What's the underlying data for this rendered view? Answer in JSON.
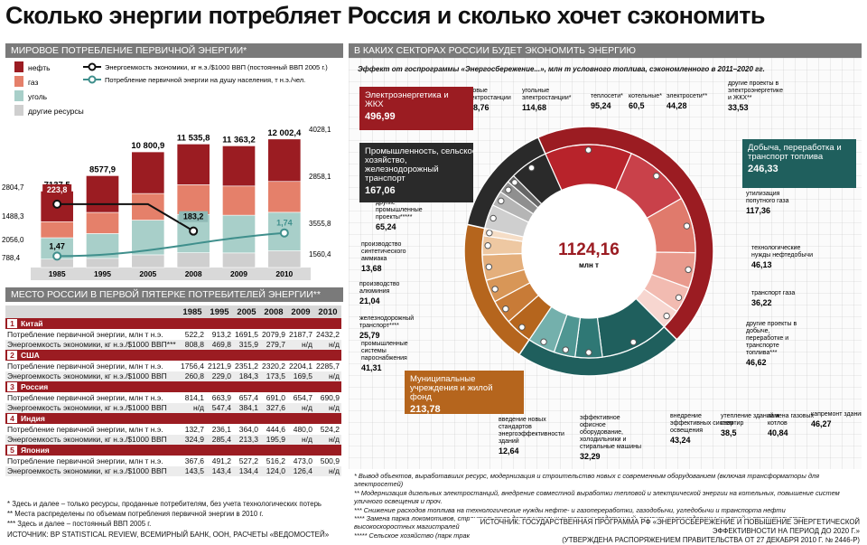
{
  "title": "Сколько энергии потребляет Россия и сколько хочет сэкономить",
  "colors": {
    "oil": "#9b1c22",
    "gas": "#e5806a",
    "coal": "#a8cfc9",
    "other": "#cfcfcf",
    "teal": "#3f8f8c",
    "dark": "#2a2a2a"
  },
  "left_section_title": "Мировое потребление первичной энергии*",
  "table_section_title": "Место России в первой пятерке потребителей энергии**",
  "right_section_title": "В каких секторах России будет экономить энергию",
  "right_subtitle": "Эффект от госпрограммы «Энергосбережение...», млн т условного топлива, сэкономленного в 2011–2020 гг.",
  "chart_data": [
    {
      "type": "bar",
      "title": "Мировое потребление первичной энергии*",
      "categories": [
        "1985",
        "1995",
        "2005",
        "2008",
        "2009",
        "2010"
      ],
      "totals": [
        "7137,5",
        "8577,9",
        "10 800,9",
        "11 535,8",
        "11 363,2",
        "12 002,4"
      ],
      "total_values": [
        7137.5,
        8577.9,
        10800.9,
        11535.8,
        11363.2,
        12002.4
      ],
      "legend": [
        "нефть",
        "газ",
        "уголь",
        "другие ресурсы"
      ],
      "legend_lines": [
        "Энергоемкость экономики, кг н.э./$1000 ВВП (постоянный ВВП 2005 г.)",
        "Потребление первичной энергии на душу населения, т н.э./чел."
      ],
      "left_axis_labels": [
        "2804,7",
        "1488,3",
        "2056,0",
        "788,4"
      ],
      "right_axis_labels": [
        "4028,1",
        "2858,1",
        "3555,8",
        "1560,4"
      ],
      "series": [
        {
          "name": "другие ресурсы",
          "values": [
            788.4,
            null,
            null,
            null,
            null,
            1560.4
          ]
        },
        {
          "name": "уголь",
          "values": [
            2056.0,
            null,
            null,
            null,
            null,
            3555.8
          ]
        },
        {
          "name": "газ",
          "values": [
            1488.3,
            null,
            null,
            null,
            null,
            2858.1
          ]
        },
        {
          "name": "нефть",
          "values": [
            2804.7,
            null,
            null,
            null,
            null,
            4028.1
          ]
        }
      ],
      "line_series": [
        {
          "name": "Энергоемкость экономики, кг н.э./$1000 ВВП (постоянный ВВП 2005 г.)",
          "values": [
            223.8,
            null,
            null,
            183.2,
            null,
            null
          ],
          "labels": [
            "223,8",
            "",
            "",
            "183,2",
            "",
            ""
          ]
        },
        {
          "name": "Потребление первичной энергии на душу населения, т н.э./чел.",
          "values": [
            1.47,
            null,
            null,
            null,
            null,
            1.74
          ],
          "labels": [
            "1,47",
            "",
            "",
            "",
            "",
            "1,74"
          ]
        }
      ]
    },
    {
      "type": "table",
      "title": "Место России в первой пятерке потребителей энергии**",
      "columns": [
        "1985",
        "1995",
        "2005",
        "2008",
        "2009",
        "2010"
      ],
      "countries": [
        {
          "num": "1",
          "name": "Китай",
          "rows": [
            {
              "label": "Потребление первичной энергии, млн т н.э.",
              "values": [
                "522,2",
                "913,2",
                "1691,5",
                "2079,9",
                "2187,7",
                "2432,2"
              ]
            },
            {
              "label": "Энергоемкость экономики, кг н.э./$1000 ВВП***",
              "values": [
                "808,8",
                "469,8",
                "315,9",
                "279,7",
                "н/д",
                "н/д"
              ]
            }
          ]
        },
        {
          "num": "2",
          "name": "США",
          "rows": [
            {
              "label": "Потребление первичной энергии, млн т н.э.",
              "values": [
                "1756,4",
                "2121,9",
                "2351,2",
                "2320,2",
                "2204,1",
                "2285,7"
              ]
            },
            {
              "label": "Энергоемкость экономики, кг н.э./$1000 ВВП",
              "values": [
                "260,8",
                "229,0",
                "184,3",
                "173,5",
                "169,5",
                "н/д"
              ]
            }
          ]
        },
        {
          "num": "3",
          "name": "Россия",
          "rows": [
            {
              "label": "Потребление первичной энергии, млн т н.э.",
              "values": [
                "814,1",
                "663,9",
                "657,4",
                "691,0",
                "654,7",
                "690,9"
              ]
            },
            {
              "label": "Энергоемкость экономики, кг н.э./$1000 ВВП",
              "values": [
                "н/д",
                "547,4",
                "384,1",
                "327,6",
                "н/д",
                "н/д"
              ]
            }
          ]
        },
        {
          "num": "4",
          "name": "Индия",
          "rows": [
            {
              "label": "Потребление первичной энергии, млн т н.э.",
              "values": [
                "132,7",
                "236,1",
                "364,0",
                "444,6",
                "480,0",
                "524,2"
              ]
            },
            {
              "label": "Энергоемкость экономики, кг н.э./$1000 ВВП",
              "values": [
                "324,9",
                "285,4",
                "213,3",
                "195,9",
                "н/д",
                "н/д"
              ]
            }
          ]
        },
        {
          "num": "5",
          "name": "Япония",
          "rows": [
            {
              "label": "Потребление первичной энергии, млн т н.э.",
              "values": [
                "367,6",
                "491,2",
                "527,2",
                "516,2",
                "473,0",
                "500,9"
              ]
            },
            {
              "label": "Энергоемкость экономики, кг н.э./$1000 ВВП",
              "values": [
                "143,5",
                "143,4",
                "134,4",
                "124,0",
                "126,4",
                "н/д"
              ]
            }
          ]
        }
      ]
    },
    {
      "type": "pie",
      "title": "Эффект от госпрограммы «Энергосбережение...», млн т условного топлива, сэкономленного в 2011–2020 гг.",
      "total": "1124,16",
      "total_unit": "млн т",
      "groups": [
        {
          "name": "Электроэнергетика и ЖКХ",
          "value": 496.99,
          "label": "496,99",
          "color": "#9b1c22"
        },
        {
          "name": "Добыча, переработка и транспорт топлива",
          "value": 246.33,
          "label": "246,33",
          "color": "#1f5f5d"
        },
        {
          "name": "Муниципальные учреждения и жилой фонд",
          "value": 213.78,
          "label": "213,78",
          "color": "#b5651d"
        },
        {
          "name": "Промышленность, сельское хозяйство, железнодорожный транспорт",
          "value": 167.06,
          "label": "167,06",
          "color": "#2a2a2a"
        }
      ],
      "slices": [
        {
          "group": 0,
          "name": "газовые электростанции",
          "label": "148,76",
          "value": 148.76
        },
        {
          "group": 0,
          "name": "угольные электростанции*",
          "label": "114,68",
          "value": 114.68
        },
        {
          "group": 0,
          "name": "теплосети*",
          "label": "95,24",
          "value": 95.24
        },
        {
          "group": 0,
          "name": "котельные*",
          "label": "60,5",
          "value": 60.5
        },
        {
          "group": 0,
          "name": "электросети**",
          "label": "44,28",
          "value": 44.28
        },
        {
          "group": 0,
          "name": "другие проекты в электроэнергетике и ЖКХ**",
          "label": "33,53",
          "value": 33.53
        },
        {
          "group": 1,
          "name": "утилизация попутного газа",
          "label": "117,36",
          "value": 117.36
        },
        {
          "group": 1,
          "name": "технологические нужды нефтедобычи",
          "label": "46,13",
          "value": 46.13
        },
        {
          "group": 1,
          "name": "транспорт газа",
          "label": "36,22",
          "value": 36.22
        },
        {
          "group": 1,
          "name": "другие проекты в добыче, переработке и транспорте топлива***",
          "label": "46,62",
          "value": 46.62
        },
        {
          "group": 2,
          "name": "капремонт зданий",
          "label": "46,27",
          "value": 46.27
        },
        {
          "group": 2,
          "name": "замена газовых котлов",
          "label": "40,84",
          "value": 40.84
        },
        {
          "group": 2,
          "name": "утепление зданий и квартир",
          "label": "38,5",
          "value": 38.5
        },
        {
          "group": 2,
          "name": "внедрение эффективных систем освещения",
          "label": "43,24",
          "value": 43.24
        },
        {
          "group": 2,
          "name": "эффективное офисное оборудование, холодильники и стиральные машины",
          "label": "32,29",
          "value": 32.29
        },
        {
          "group": 2,
          "name": "введение новых стандартов энергоэффективности зданий",
          "label": "12,64",
          "value": 12.64
        },
        {
          "group": 3,
          "name": "промышленные системы пароснабжения",
          "label": "41,31",
          "value": 41.31
        },
        {
          "group": 3,
          "name": "железнодорожный транспорт****",
          "label": "25,79",
          "value": 25.79
        },
        {
          "group": 3,
          "name": "производство алюминия",
          "label": "21,04",
          "value": 21.04
        },
        {
          "group": 3,
          "name": "производство синтетического аммиака",
          "label": "13,68",
          "value": 13.68
        },
        {
          "group": 3,
          "name": "другие промышленные проекты*****",
          "label": "65,24",
          "value": 65.24
        }
      ]
    }
  ],
  "left_notes": [
    "* Здесь и далее – только ресурсы, проданные потребителям, без учета технологических потерь",
    "** Места распределены по объемам потребления первичной энергии в 2010 г.",
    "*** Здесь и далее – постоянный ВВП 2005 г."
  ],
  "left_source": "ИСТОЧНИК: BP STATISTICAL REVIEW, ВСЕМИРНЫЙ БАНК, ООН, РАСЧЕТЫ «ВЕДОМОСТЕЙ»",
  "right_notes": [
    "* Вывод объектов, выработавших ресурс, модернизация и строительство новых с современным оборудованием (включая трансформаторы для электросетей)",
    "** Модернизация дизельных электростанций, внедрение совместной выработки тепловой и электрической энергии на котельных, повышение систем уличного освещения и проч.",
    "*** Снижение расходов топлива на технологические нужды нефте- и газопереработки, газодобычи, угледобычи и транспорта нефти",
    "**** Замена парка локомотивов, строительство дополнительных тяговых подстанций, ремонт железнодорожных путей и строительство высокоскоростных магистралей",
    "***** Сельское хозяйство (парк тракторов, теплиц), химические, металлургические, цементные и целлюлозно-бумажные производства"
  ],
  "right_source": [
    "ИСТОЧНИК: ГОСУДАРСТВЕННАЯ ПРОГРАММА РФ «ЭНЕРГОСБЕРЕЖЕНИЕ И ПОВЫШЕНИЕ ЭНЕРГЕТИЧЕСКОЙ ЭФФЕКТИВНОСТИ НА ПЕРИОД ДО 2020 Г.»",
    "(УТВЕРЖДЕНА РАСПОРЯЖЕНИЕМ ПРАВИТЕЛЬСТВА ОТ 27 ДЕКАБРЯ 2010 Г. № 2446-Р)"
  ]
}
